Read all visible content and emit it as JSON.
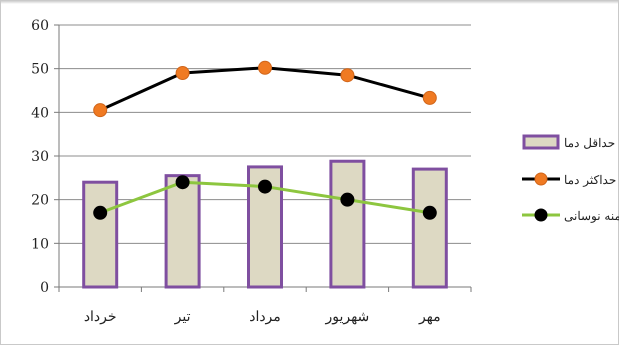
{
  "chart_data": {
    "type": "bar",
    "categories": [
      "خرداد",
      "تیر",
      "مرداد",
      "شهریور",
      "مهر"
    ],
    "ylim": [
      0,
      60
    ],
    "yticks": [
      0,
      10,
      20,
      30,
      40,
      50,
      60
    ],
    "grid": true,
    "legend_position": "right",
    "series": [
      {
        "name": "حداقل دما",
        "kind": "bar",
        "values": [
          24,
          25.5,
          27.5,
          28.8,
          27
        ],
        "fill": "#ddd9c3",
        "stroke": "#7f4fa0"
      },
      {
        "name": "حداکثر دما",
        "kind": "line",
        "values": [
          40.5,
          49,
          50.2,
          48.5,
          43.3
        ],
        "line": "#000000",
        "marker": "#f07a22"
      },
      {
        "name": "دامنه نوسانی",
        "kind": "line",
        "values": [
          17,
          24,
          23,
          20,
          17
        ],
        "line": "#8dc63f",
        "marker": "#000000"
      }
    ]
  }
}
